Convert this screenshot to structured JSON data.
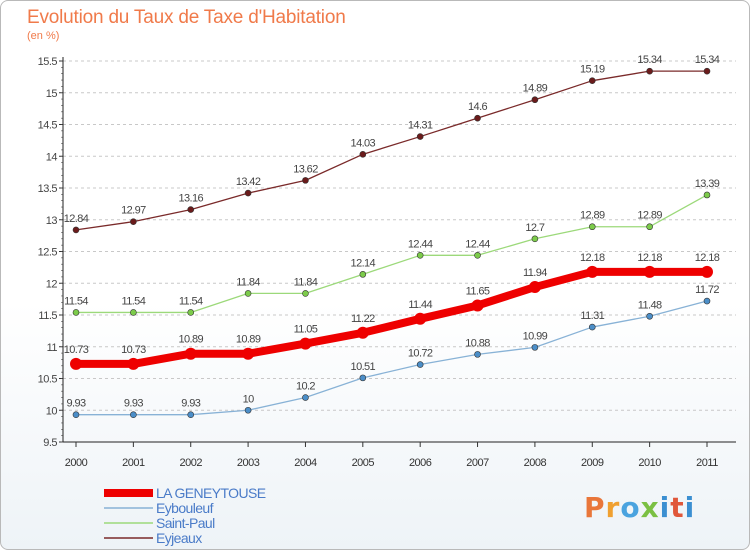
{
  "title": "Evolution du Taux de Taxe d'Habitation",
  "unit": "(en %)",
  "logo": "Proxiti",
  "chart_data": {
    "type": "line",
    "title": "Evolution du Taux de Taxe d'Habitation",
    "ylabel": "(en %)",
    "xlabel": "",
    "ylim": [
      9.5,
      15.5
    ],
    "yticks": [
      9.5,
      10,
      10.5,
      11,
      11.5,
      12,
      12.5,
      13,
      13.5,
      14,
      14.5,
      15,
      15.5
    ],
    "ytick_labels": [
      "9.5",
      "10",
      "10.5",
      "11",
      "11.5",
      "12",
      "12.5",
      "13",
      "13.5",
      "14",
      "14.5",
      "15",
      "15.5"
    ],
    "x": [
      "2000",
      "2001",
      "2002",
      "2003",
      "2004",
      "2005",
      "2006",
      "2007",
      "2008",
      "2009",
      "2010",
      "2011"
    ],
    "grid": "horizontal dashed",
    "legend_position": "bottom-left",
    "series": [
      {
        "name": "Eyjeaux",
        "color": "#7a2a2a",
        "marker": "#6b1b1b",
        "width": 1.3,
        "values": [
          12.84,
          12.97,
          13.16,
          13.42,
          13.62,
          14.03,
          14.31,
          14.6,
          14.89,
          15.19,
          15.34,
          15.34
        ],
        "labels": [
          "12.84",
          "12.97",
          "13.16",
          "13.42",
          "13.62",
          "14.03",
          "14.31",
          "14.6",
          "14.89",
          "15.19",
          "15.34",
          "15.34"
        ]
      },
      {
        "name": "Saint-Paul",
        "color": "#9cd97a",
        "marker": "#7ccb4a",
        "width": 1.3,
        "values": [
          11.54,
          11.54,
          11.54,
          11.84,
          11.84,
          12.14,
          12.44,
          12.44,
          12.7,
          12.89,
          12.89,
          13.39
        ],
        "labels": [
          "11.54",
          "11.54",
          "11.54",
          "11.84",
          "11.84",
          "12.14",
          "12.44",
          "12.44",
          "12.7",
          "12.89",
          "12.89",
          "13.39"
        ]
      },
      {
        "name": "LA GENEYTOUSE",
        "color": "#ee0000",
        "marker": "#ee0000",
        "width": 8,
        "values": [
          10.73,
          10.73,
          10.89,
          10.89,
          11.05,
          11.22,
          11.44,
          11.65,
          11.94,
          12.18,
          12.18,
          12.18
        ],
        "labels": [
          "10.73",
          "10.73",
          "10.89",
          "10.89",
          "11.05",
          "11.22",
          "11.44",
          "11.65",
          "11.94",
          "12.18",
          "12.18",
          "12.18"
        ]
      },
      {
        "name": "Eybouleuf",
        "color": "#88b2d6",
        "marker": "#4b8ec8",
        "width": 1.3,
        "values": [
          9.93,
          9.93,
          9.93,
          10,
          10.2,
          10.51,
          10.72,
          10.88,
          10.99,
          11.31,
          11.48,
          11.72
        ],
        "labels": [
          "9.93",
          "9.93",
          "9.93",
          "10",
          "10.2",
          "10.51",
          "10.72",
          "10.88",
          "10.99",
          "11.31",
          "11.48",
          "11.72"
        ]
      }
    ],
    "legend_order": [
      "LA GENEYTOUSE",
      "Eybouleuf",
      "Saint-Paul",
      "Eyjeaux"
    ]
  }
}
